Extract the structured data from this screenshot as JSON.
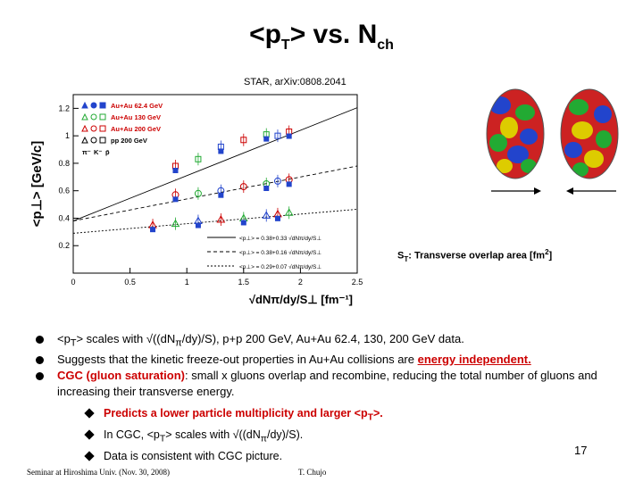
{
  "title": {
    "pre": "<p",
    "sub": "T",
    "post": "> vs. N",
    "sub2": "ch"
  },
  "reference": "STAR, arXiv:0808.2041",
  "chart_data": {
    "type": "scatter",
    "ylabel": "<p⊥> [GeV/c]",
    "xlabel": "√dNπ/dy/S⊥ [fm⁻¹]",
    "xlim": [
      0,
      2.5
    ],
    "ylim": [
      0,
      1.3
    ],
    "xticks": [
      "0",
      "0.5",
      "1",
      "1.5",
      "2",
      "2.5"
    ],
    "yticks": [
      "0.2",
      "0.4",
      "0.6",
      "0.8",
      "1",
      "1.2"
    ],
    "legend": [
      {
        "label": "Au+Au 62.4 GeV",
        "color": "#cc0000"
      },
      {
        "label": "Au+Au 130 GeV",
        "color": "#cc0000"
      },
      {
        "label": "Au+Au 200 GeV",
        "color": "#cc0000"
      },
      {
        "label": "pp 200 GeV",
        "color": "#000000"
      }
    ],
    "particle_labels": [
      "π⁻",
      "K⁻",
      "p̄"
    ],
    "fits": [
      {
        "label": "<p⊥> = 0.38+0.33 √dNπ/dy/S⊥",
        "intercept": 0.38,
        "slope": 0.33
      },
      {
        "label": "<p⊥> = 0.38+0.16 √dNπ/dy/S⊥",
        "intercept": 0.38,
        "slope": 0.16
      },
      {
        "label": "<p⊥> = 0.29+0.07 √dNπ/dy/S⊥",
        "intercept": 0.29,
        "slope": 0.07
      }
    ],
    "series": [
      {
        "name": "p̄",
        "x": [
          0.9,
          1.1,
          1.3,
          1.5,
          1.7,
          1.8,
          1.9
        ],
        "y": [
          0.78,
          0.83,
          0.92,
          0.97,
          1.01,
          1.0,
          1.03
        ]
      },
      {
        "name": "K⁻",
        "x": [
          0.9,
          1.1,
          1.3,
          1.5,
          1.7,
          1.8,
          1.9
        ],
        "y": [
          0.57,
          0.58,
          0.6,
          0.63,
          0.65,
          0.67,
          0.68
        ]
      },
      {
        "name": "π⁻",
        "x": [
          0.7,
          0.9,
          1.1,
          1.3,
          1.5,
          1.7,
          1.8,
          1.9
        ],
        "y": [
          0.35,
          0.36,
          0.38,
          0.39,
          0.4,
          0.42,
          0.43,
          0.44
        ]
      }
    ],
    "grid": false,
    "legend_position": "top-left"
  },
  "overlap_label": {
    "pre": "S",
    "sub": "T",
    "post": ": Transverse overlap area [fm",
    "sup": "2",
    "end": "]"
  },
  "bullets": {
    "b1": {
      "a": "<p",
      "sub": "T",
      "b": "> scales with √((dN",
      "sub2": "π",
      "c": "/dy)/S), p+p 200 GeV, Au+Au 62.4, 130, 200 GeV data."
    },
    "b2": {
      "a": "Suggests that the kinetic freeze-out properties in Au+Au collisions are ",
      "red": "energy independent."
    },
    "b3": {
      "red": "CGC (gluon saturation)",
      "a": ": small x gluons overlap and recombine, reducing the total number of gluons and increasing their transverse energy."
    },
    "s1": {
      "a": "Predicts a lower particle multiplicity and larger <p",
      "sub": "T",
      "b": ">."
    },
    "s2": {
      "a": "In CGC, <p",
      "sub": "T",
      "b": "> scales with √((dN",
      "sub2": "π",
      "c": "/dy)/S)."
    },
    "s3": {
      "a": "Data is consistent with CGC picture."
    }
  },
  "page_number": "17",
  "footer": {
    "left": "Seminar at Hiroshima Univ. (Nov. 30, 2008)",
    "author": "T. Chujo"
  }
}
